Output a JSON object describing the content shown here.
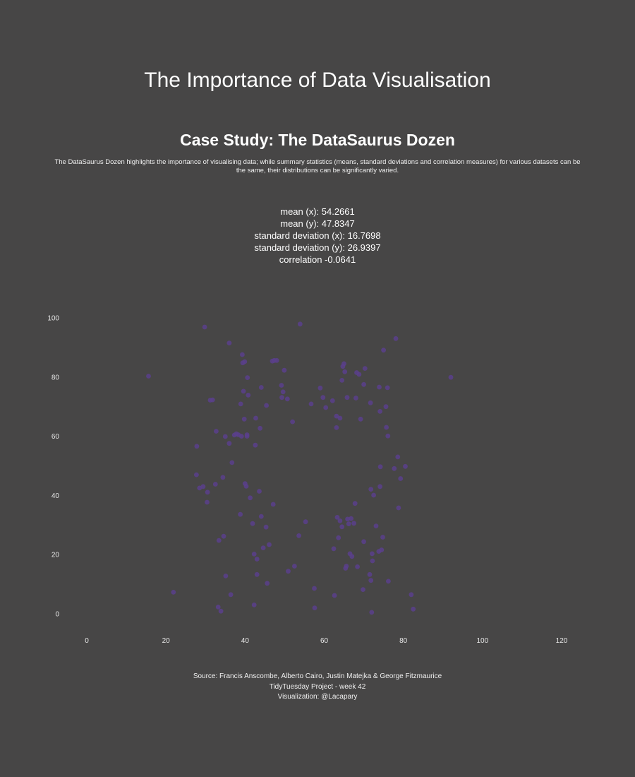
{
  "page": {
    "title": "The Importance of Data Visualisation",
    "subtitle": "Case Study: The DataSaurus Dozen",
    "description": "The DataSaurus Dozen highlights the importance of visualising data; while summary statistics (means, standard deviations and correlation measures) for various datasets can be the same, their distributions can be significantly varied.",
    "stats": [
      "mean (x): 54.2661",
      "mean (y): 47.8347",
      "standard deviation (x): 16.7698",
      "standard deviation (y): 26.9397",
      "correlation -0.0641"
    ],
    "caption": [
      "Source: Francis Anscombe, Alberto Cairo, Justin Matejka & George Fitzmaurice",
      "TidyTuesday Project - week 42",
      "Visualization: @Lacapary"
    ]
  },
  "colors": {
    "background": "#474646",
    "point": "#5a3f8c",
    "text": "#ffffff"
  },
  "chart_data": {
    "type": "scatter",
    "xlim": [
      0,
      120
    ],
    "ylim": [
      0,
      100
    ],
    "xticks": [
      "0",
      "20",
      "40",
      "60",
      "80",
      "100",
      "120"
    ],
    "yticks": [
      "0",
      "20",
      "40",
      "60",
      "80",
      "100"
    ],
    "grid": false,
    "points": [
      [
        15.6,
        80.3
      ],
      [
        21.9,
        7.3
      ],
      [
        27.8,
        56.6
      ],
      [
        27.7,
        47.0
      ],
      [
        28.5,
        42.5
      ],
      [
        29.4,
        43.0
      ],
      [
        29.8,
        96.9
      ],
      [
        30.5,
        41.1
      ],
      [
        30.4,
        37.7
      ],
      [
        31.2,
        72.2
      ],
      [
        31.8,
        72.3
      ],
      [
        32.5,
        43.8
      ],
      [
        32.7,
        61.7
      ],
      [
        33.2,
        2.3
      ],
      [
        33.4,
        24.8
      ],
      [
        33.9,
        0.9
      ],
      [
        34.4,
        46.1
      ],
      [
        34.6,
        26.2
      ],
      [
        35.1,
        12.8
      ],
      [
        35.0,
        59.9
      ],
      [
        36.0,
        57.6
      ],
      [
        36.0,
        91.5
      ],
      [
        36.4,
        6.5
      ],
      [
        36.7,
        51.1
      ],
      [
        37.3,
        60.4
      ],
      [
        37.8,
        60.8
      ],
      [
        38.3,
        60.5
      ],
      [
        38.8,
        33.6
      ],
      [
        38.9,
        70.9
      ],
      [
        39.1,
        60.0
      ],
      [
        39.3,
        87.6
      ],
      [
        39.4,
        84.8
      ],
      [
        39.6,
        75.2
      ],
      [
        39.8,
        65.8
      ],
      [
        39.9,
        85.2
      ],
      [
        40.0,
        44.0
      ],
      [
        40.3,
        43.1
      ],
      [
        40.5,
        60.0
      ],
      [
        40.5,
        60.5
      ],
      [
        40.6,
        79.8
      ],
      [
        40.8,
        73.9
      ],
      [
        41.3,
        39.2
      ],
      [
        41.9,
        30.5
      ],
      [
        42.3,
        3.0
      ],
      [
        42.3,
        20.2
      ],
      [
        42.7,
        66.1
      ],
      [
        42.6,
        57.0
      ],
      [
        43.0,
        13.3
      ],
      [
        43.0,
        18.5
      ],
      [
        43.6,
        41.4
      ],
      [
        43.8,
        62.7
      ],
      [
        44.1,
        76.5
      ],
      [
        44.1,
        32.9
      ],
      [
        44.6,
        22.3
      ],
      [
        45.3,
        29.3
      ],
      [
        45.4,
        70.4
      ],
      [
        45.6,
        10.3
      ],
      [
        46.1,
        23.4
      ],
      [
        46.9,
        85.4
      ],
      [
        47.1,
        37.0
      ],
      [
        47.4,
        85.6
      ],
      [
        48.0,
        85.6
      ],
      [
        49.2,
        77.2
      ],
      [
        49.3,
        73.1
      ],
      [
        49.6,
        75.0
      ],
      [
        49.9,
        82.3
      ],
      [
        50.7,
        72.6
      ],
      [
        50.9,
        14.4
      ],
      [
        52.0,
        64.9
      ],
      [
        52.5,
        16.1
      ],
      [
        53.6,
        26.4
      ],
      [
        53.9,
        97.9
      ],
      [
        55.3,
        31.1
      ],
      [
        56.7,
        70.9
      ],
      [
        57.5,
        8.6
      ],
      [
        57.6,
        2.0
      ],
      [
        59.0,
        76.3
      ],
      [
        59.7,
        73.1
      ],
      [
        60.4,
        69.7
      ],
      [
        62.1,
        72.0
      ],
      [
        62.6,
        6.2
      ],
      [
        62.4,
        22.0
      ],
      [
        63.1,
        62.9
      ],
      [
        63.1,
        66.8
      ],
      [
        63.3,
        32.6
      ],
      [
        63.6,
        25.7
      ],
      [
        64.0,
        66.1
      ],
      [
        64.0,
        31.4
      ],
      [
        64.5,
        29.4
      ],
      [
        64.5,
        78.9
      ],
      [
        64.7,
        83.6
      ],
      [
        65.0,
        84.5
      ],
      [
        65.2,
        81.8
      ],
      [
        65.4,
        15.4
      ],
      [
        65.6,
        16.1
      ],
      [
        65.8,
        73.1
      ],
      [
        65.9,
        32.0
      ],
      [
        66.2,
        30.4
      ],
      [
        66.5,
        20.3
      ],
      [
        66.8,
        32.2
      ],
      [
        67.0,
        19.4
      ],
      [
        67.5,
        30.6
      ],
      [
        67.8,
        37.3
      ],
      [
        68.0,
        72.9
      ],
      [
        68.2,
        81.5
      ],
      [
        68.4,
        15.9
      ],
      [
        68.8,
        80.9
      ],
      [
        69.2,
        65.8
      ],
      [
        69.8,
        8.2
      ],
      [
        70.0,
        77.5
      ],
      [
        70.0,
        24.4
      ],
      [
        70.3,
        82.9
      ],
      [
        71.5,
        13.3
      ],
      [
        71.7,
        71.3
      ],
      [
        71.8,
        42.1
      ],
      [
        71.8,
        11.3
      ],
      [
        72.0,
        0.5
      ],
      [
        72.1,
        20.3
      ],
      [
        72.2,
        17.9
      ],
      [
        72.5,
        40.1
      ],
      [
        73.1,
        29.7
      ],
      [
        73.8,
        21.1
      ],
      [
        73.9,
        76.6
      ],
      [
        74.1,
        68.4
      ],
      [
        74.1,
        43.0
      ],
      [
        74.2,
        49.7
      ],
      [
        74.5,
        21.6
      ],
      [
        74.8,
        25.9
      ],
      [
        75.0,
        89.1
      ],
      [
        75.6,
        70.0
      ],
      [
        75.7,
        63.0
      ],
      [
        76.0,
        76.4
      ],
      [
        76.1,
        60.1
      ],
      [
        76.2,
        11.0
      ],
      [
        77.7,
        49.1
      ],
      [
        78.1,
        93.0
      ],
      [
        78.6,
        53.0
      ],
      [
        78.8,
        35.8
      ],
      [
        79.3,
        45.7
      ],
      [
        80.5,
        49.8
      ],
      [
        82.0,
        6.5
      ],
      [
        82.5,
        1.6
      ],
      [
        92.0,
        79.9
      ]
    ]
  }
}
